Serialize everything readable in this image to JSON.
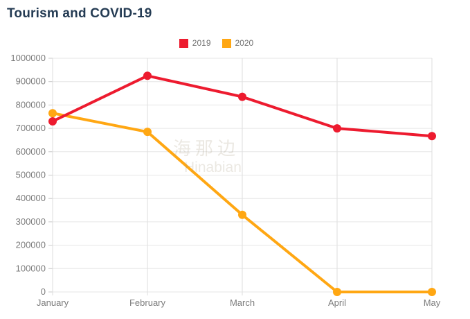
{
  "title": "Tourism and COVID-19",
  "watermark": {
    "line1": "海那边",
    "line2": "Hinabian"
  },
  "chart_data": {
    "type": "line",
    "title": "Tourism and COVID-19",
    "categories": [
      "January",
      "February",
      "March",
      "April",
      "May"
    ],
    "series": [
      {
        "name": "2019",
        "color": "#ed1b2f",
        "values": [
          730000,
          925000,
          835000,
          700000,
          667000
        ]
      },
      {
        "name": "2020",
        "color": "#ffa713",
        "values": [
          765000,
          685000,
          330000,
          0,
          0
        ]
      }
    ],
    "ylim": [
      0,
      1000000
    ],
    "ytick_step": 100000,
    "ytick_labels": [
      "0",
      "100000",
      "200000",
      "300000",
      "400000",
      "500000",
      "600000",
      "700000",
      "800000",
      "900000",
      "1000000"
    ],
    "grid": true,
    "legend_position": "top-center",
    "axis_label_color": "#7b7b7b",
    "grid_color_h": "#e6e6e6",
    "grid_color_v": "#dedede",
    "tick_color": "#c8c8c8",
    "marker_radius": 6,
    "line_width": 4
  }
}
